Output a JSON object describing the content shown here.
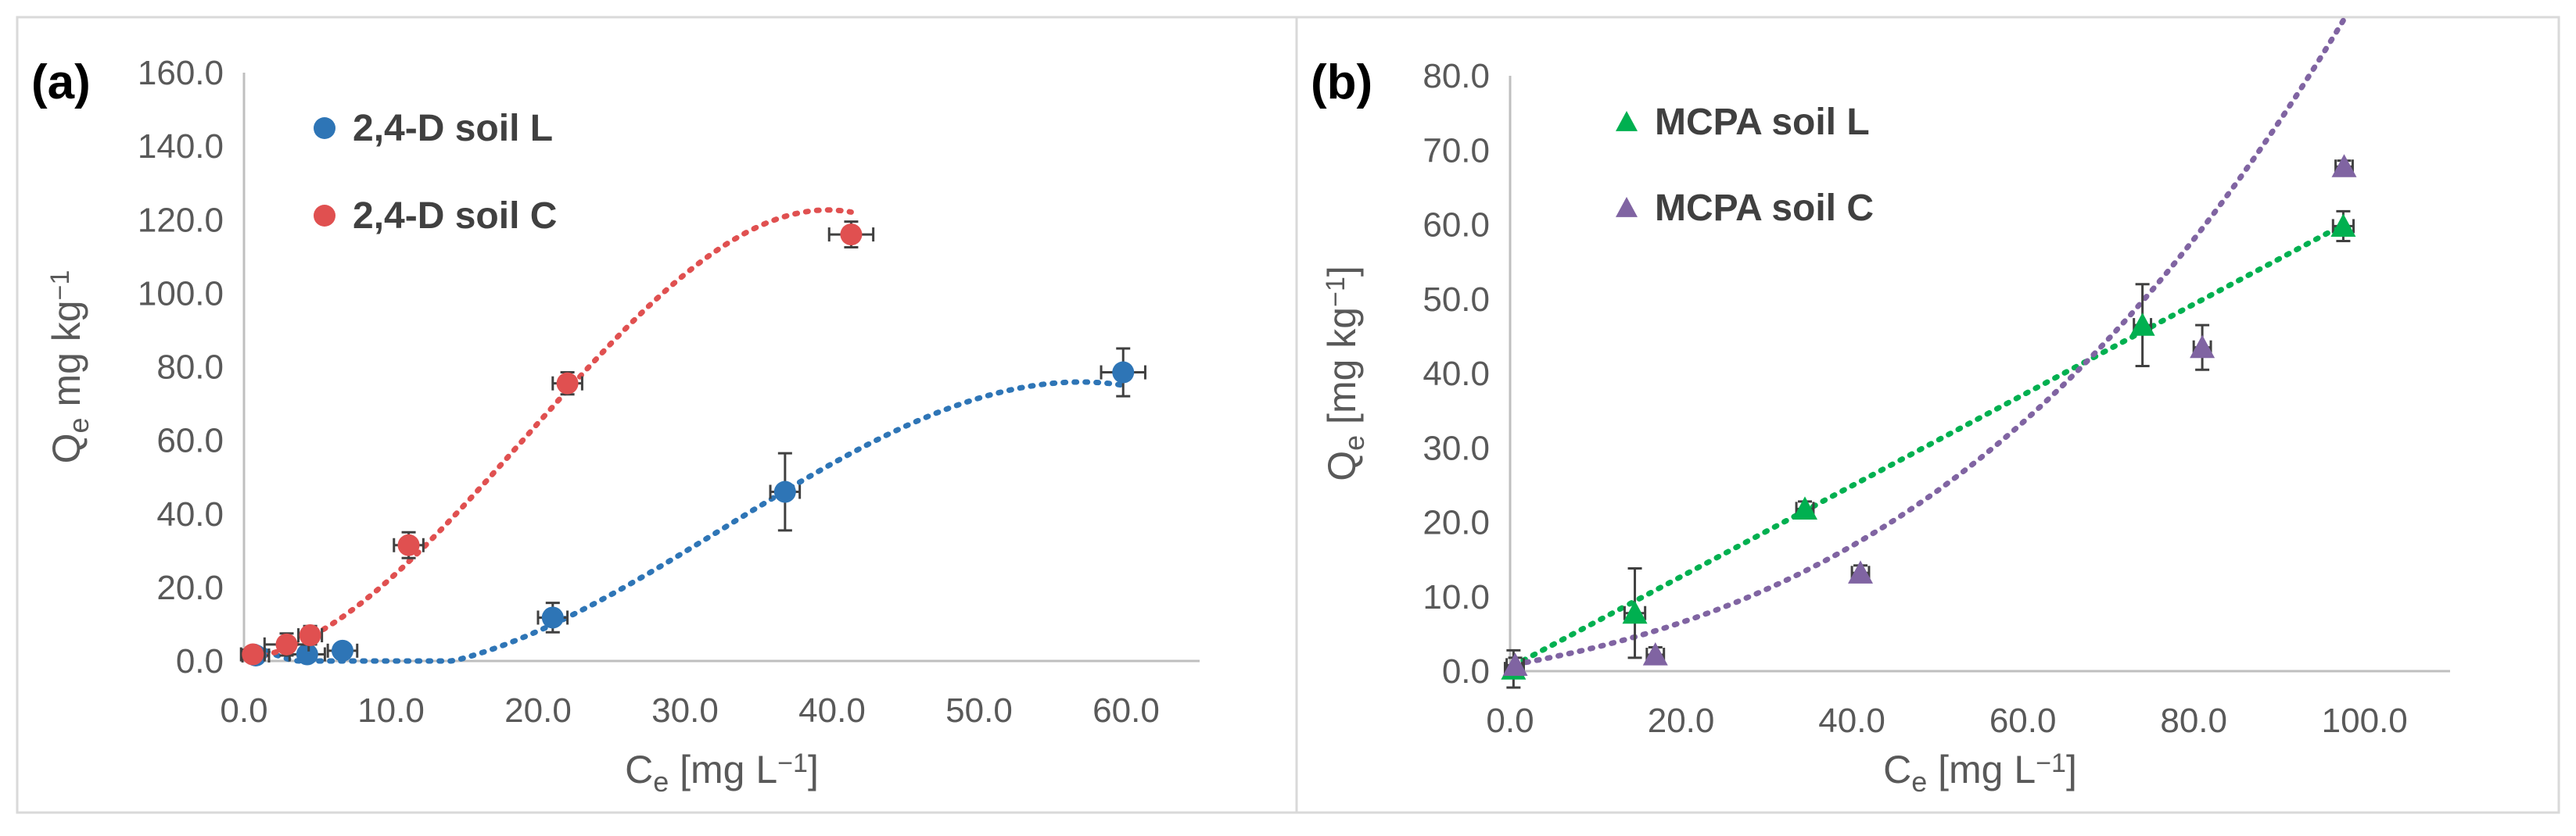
{
  "chart_data": [
    {
      "type": "scatter",
      "panel_label": "(a)",
      "xlabel": {
        "main": "C",
        "sub": "e",
        "rest": " [mg L",
        "sup": "−1",
        "end": "]"
      },
      "ylabel": {
        "main": "Q",
        "sub": "e",
        "rest": " mg kg",
        "sup": "−1",
        "end": ""
      },
      "xlim": [
        0,
        65
      ],
      "ylim": [
        0,
        160
      ],
      "xticks": [
        "0.0",
        "10.0",
        "20.0",
        "30.0",
        "40.0",
        "50.0",
        "60.0"
      ],
      "yticks": [
        "0.0",
        "20.0",
        "40.0",
        "60.0",
        "80.0",
        "100.0",
        "120.0",
        "140.0",
        "160.0"
      ],
      "xtick_values": [
        0,
        10,
        20,
        30,
        40,
        50,
        60
      ],
      "ytick_values": [
        0,
        20,
        40,
        60,
        80,
        100,
        120,
        140,
        160
      ],
      "legend_position": "top-left",
      "series": [
        {
          "name": "2,4-D soil L",
          "marker": "circle",
          "color": "#2E75B6",
          "points": [
            {
              "x": 0.8,
              "y": 1.5,
              "xerr": 0.9,
              "yerr": 1.0
            },
            {
              "x": 4.3,
              "y": 1.8,
              "xerr": 1.2,
              "yerr": 1.0
            },
            {
              "x": 6.7,
              "y": 2.8,
              "xerr": 1.0,
              "yerr": 1.5
            },
            {
              "x": 21.0,
              "y": 11.8,
              "xerr": 1.0,
              "yerr": 4.0
            },
            {
              "x": 36.8,
              "y": 46.0,
              "xerr": 1.0,
              "yerr": 10.5
            },
            {
              "x": 59.8,
              "y": 78.5,
              "xerr": 1.5,
              "yerr": 6.5
            }
          ],
          "trendline": "polynomial",
          "trend_xrange": [
            0.8,
            59.8
          ],
          "trend_coeffs": [
            5.5,
            -2.06,
            0.1376,
            -0.0014
          ]
        },
        {
          "name": "2,4-D soil C",
          "marker": "circle",
          "color": "#E05050",
          "points": [
            {
              "x": 0.6,
              "y": 1.8,
              "xerr": 0.8,
              "yerr": 1.0
            },
            {
              "x": 2.9,
              "y": 4.5,
              "xerr": 1.5,
              "yerr": 3.0
            },
            {
              "x": 4.5,
              "y": 7.0,
              "xerr": 0.8,
              "yerr": 2.5
            },
            {
              "x": 11.2,
              "y": 31.5,
              "xerr": 1.0,
              "yerr": 3.5
            },
            {
              "x": 22.0,
              "y": 75.5,
              "xerr": 1.0,
              "yerr": 3.0
            },
            {
              "x": 41.3,
              "y": 116.0,
              "xerr": 1.5,
              "yerr": 3.5
            }
          ],
          "trendline": "polynomial",
          "trend_xrange": [
            0.6,
            41.3
          ],
          "trend_coeffs": [
            0.4,
            0.5,
            0.2075,
            -0.00359
          ]
        }
      ]
    },
    {
      "type": "scatter",
      "panel_label": "(b)",
      "xlabel": {
        "main": "C",
        "sub": "e",
        "rest": " [mg L",
        "sup": "−1",
        "end": "]"
      },
      "ylabel": {
        "main": "Q",
        "sub": "e",
        "rest": " [mg kg",
        "sup": "−1",
        "end": "]"
      },
      "xlim": [
        0,
        110
      ],
      "ylim": [
        0,
        80
      ],
      "xticks": [
        "0.0",
        "20.0",
        "40.0",
        "60.0",
        "80.0",
        "100.0"
      ],
      "yticks": [
        "0.0",
        "10.0",
        "20.0",
        "30.0",
        "40.0",
        "50.0",
        "60.0",
        "70.0",
        "80.0"
      ],
      "xtick_values": [
        0,
        20,
        40,
        60,
        80,
        100
      ],
      "ytick_values": [
        0,
        10,
        20,
        30,
        40,
        50,
        60,
        70,
        80
      ],
      "legend_position": "top-left",
      "series": [
        {
          "name": "MCPA soil L",
          "marker": "triangle",
          "color": "#00B050",
          "points": [
            {
              "x": 0.4,
              "y": 0.3,
              "xerr": 1.0,
              "yerr": 2.5
            },
            {
              "x": 14.6,
              "y": 7.8,
              "xerr": 1.2,
              "yerr": 6.0
            },
            {
              "x": 34.5,
              "y": 21.8,
              "xerr": 1.0,
              "yerr": 1.0
            },
            {
              "x": 74.0,
              "y": 46.5,
              "xerr": 1.0,
              "yerr": 5.5
            },
            {
              "x": 97.5,
              "y": 59.8,
              "xerr": 1.2,
              "yerr": 2.0
            }
          ],
          "trendline": "linear",
          "trend_xrange": [
            0.4,
            97.5
          ],
          "trend_coeffs": [
            0.5,
            0.61
          ]
        },
        {
          "name": "MCPA soil C",
          "marker": "triangle",
          "color": "#8064A2",
          "points": [
            {
              "x": 0.6,
              "y": 0.8,
              "xerr": 1.0,
              "yerr": 1.0
            },
            {
              "x": 17.0,
              "y": 2.2,
              "xerr": 1.0,
              "yerr": 1.0
            },
            {
              "x": 41.0,
              "y": 13.2,
              "xerr": 1.0,
              "yerr": 1.0
            },
            {
              "x": 81.0,
              "y": 43.5,
              "xerr": 1.0,
              "yerr": 3.0
            },
            {
              "x": 97.6,
              "y": 67.8,
              "xerr": 1.0,
              "yerr": 0.8
            }
          ],
          "trendline": "polynomial",
          "trend_xrange": [
            0.6,
            97.6
          ],
          "trend_coeffs": [
            0.8,
            0.2,
            0.0036,
            3.55e-05
          ]
        }
      ]
    }
  ]
}
